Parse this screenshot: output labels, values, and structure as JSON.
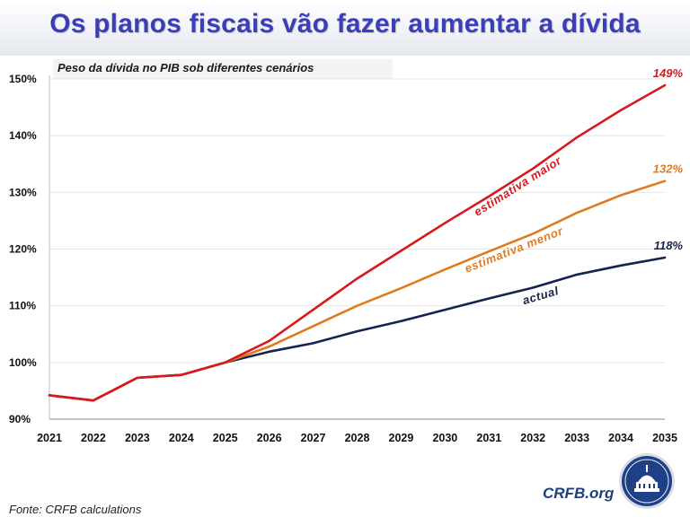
{
  "header": {
    "title": "Os planos fiscais vão fazer aumentar a dívida",
    "subtitle": "Peso da dívida no PIB sob diferentes cenários"
  },
  "footer": {
    "source": "Fonte: CRFB calculations",
    "brand": "CRFB.org"
  },
  "chart_data": {
    "type": "line",
    "title": "Os planos fiscais vão fazer aumentar a dívida",
    "subtitle": "Peso da dívida no PIB sob diferentes cenários",
    "xlabel": "",
    "ylabel": "",
    "x": [
      2021,
      2022,
      2023,
      2024,
      2025,
      2026,
      2027,
      2028,
      2029,
      2030,
      2031,
      2032,
      2033,
      2034,
      2035
    ],
    "ylim": [
      90,
      150
    ],
    "yticks": [
      90,
      100,
      110,
      120,
      130,
      140,
      150
    ],
    "ytick_labels": [
      "90%",
      "100%",
      "110%",
      "120%",
      "130%",
      "140%",
      "150%"
    ],
    "grid": "horizontal",
    "series": [
      {
        "name": "estimativa maior",
        "color": "#d7191c",
        "end_label": "149%",
        "values": [
          94.2,
          93.3,
          97.3,
          97.8,
          100.0,
          103.8,
          109.3,
          114.8,
          119.7,
          124.6,
          129.3,
          134.2,
          139.7,
          144.5,
          148.9
        ]
      },
      {
        "name": "estimativa menor",
        "color": "#e07a1f",
        "end_label": "132%",
        "values": [
          94.2,
          93.3,
          97.3,
          97.8,
          100.0,
          102.8,
          106.4,
          110.0,
          113.1,
          116.4,
          119.6,
          122.7,
          126.4,
          129.5,
          132.0
        ]
      },
      {
        "name": "actual",
        "color": "#14244f",
        "end_label": "118%",
        "values": [
          94.2,
          93.3,
          97.3,
          97.8,
          100.0,
          101.9,
          103.4,
          105.5,
          107.3,
          109.3,
          111.3,
          113.2,
          115.5,
          117.1,
          118.5
        ]
      }
    ],
    "legend": "inline-labels"
  }
}
